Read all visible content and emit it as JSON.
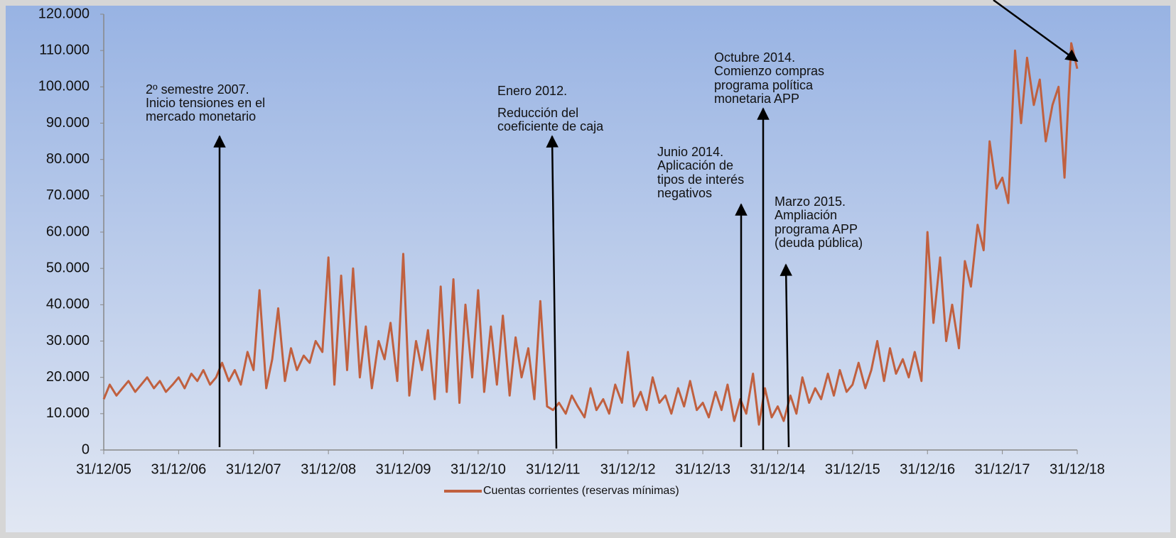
{
  "chart_data": {
    "type": "line",
    "x": [
      2006.0,
      2006.08,
      2006.17,
      2006.25,
      2006.33,
      2006.42,
      2006.5,
      2006.58,
      2006.67,
      2006.75,
      2006.83,
      2006.92,
      2007.0,
      2007.08,
      2007.17,
      2007.25,
      2007.33,
      2007.42,
      2007.5,
      2007.58,
      2007.67,
      2007.75,
      2007.83,
      2007.92,
      2008.0,
      2008.08,
      2008.17,
      2008.25,
      2008.33,
      2008.42,
      2008.5,
      2008.58,
      2008.67,
      2008.75,
      2008.83,
      2008.92,
      2009.0,
      2009.08,
      2009.17,
      2009.25,
      2009.33,
      2009.42,
      2009.5,
      2009.58,
      2009.67,
      2009.75,
      2009.83,
      2009.92,
      2010.0,
      2010.08,
      2010.17,
      2010.25,
      2010.33,
      2010.42,
      2010.5,
      2010.58,
      2010.67,
      2010.75,
      2010.83,
      2010.92,
      2011.0,
      2011.08,
      2011.17,
      2011.25,
      2011.33,
      2011.42,
      2011.5,
      2011.58,
      2011.67,
      2011.75,
      2011.83,
      2011.92,
      2012.0,
      2012.08,
      2012.17,
      2012.25,
      2012.33,
      2012.42,
      2012.5,
      2012.58,
      2012.67,
      2012.75,
      2012.83,
      2012.92,
      2013.0,
      2013.08,
      2013.17,
      2013.25,
      2013.33,
      2013.42,
      2013.5,
      2013.58,
      2013.67,
      2013.75,
      2013.83,
      2013.92,
      2014.0,
      2014.08,
      2014.17,
      2014.25,
      2014.33,
      2014.42,
      2014.5,
      2014.58,
      2014.67,
      2014.75,
      2014.83,
      2014.92,
      2015.0,
      2015.08,
      2015.17,
      2015.25,
      2015.33,
      2015.42,
      2015.5,
      2015.58,
      2015.67,
      2015.75,
      2015.83,
      2015.92,
      2016.0,
      2016.08,
      2016.17,
      2016.25,
      2016.33,
      2016.42,
      2016.5,
      2016.58,
      2016.67,
      2016.75,
      2016.83,
      2016.92,
      2017.0,
      2017.08,
      2017.17,
      2017.25,
      2017.33,
      2017.42,
      2017.5,
      2017.58,
      2017.67,
      2017.75,
      2017.83,
      2017.92,
      2018.0,
      2018.08,
      2018.17,
      2018.25,
      2018.33,
      2018.42,
      2018.5,
      2018.58,
      2018.67,
      2018.75,
      2018.83,
      2018.92,
      2019.0
    ],
    "series": [
      {
        "name": "Cuentas corrientes (reservas mínimas)",
        "color": "#c0603f",
        "values": [
          14000,
          18000,
          15000,
          17000,
          19000,
          16000,
          18000,
          20000,
          17000,
          19000,
          16000,
          18000,
          20000,
          17000,
          21000,
          19000,
          22000,
          18000,
          20000,
          24000,
          19000,
          22000,
          18000,
          27000,
          22000,
          44000,
          17000,
          25000,
          39000,
          19000,
          28000,
          22000,
          26000,
          24000,
          30000,
          27000,
          53000,
          18000,
          48000,
          22000,
          50000,
          20000,
          34000,
          17000,
          30000,
          25000,
          35000,
          19000,
          54000,
          15000,
          30000,
          22000,
          33000,
          14000,
          45000,
          16000,
          47000,
          13000,
          40000,
          20000,
          44000,
          16000,
          34000,
          18000,
          37000,
          15000,
          31000,
          20000,
          28000,
          14000,
          41000,
          12000,
          11000,
          13000,
          10000,
          15000,
          12000,
          9000,
          17000,
          11000,
          14000,
          10000,
          18000,
          13000,
          27000,
          12000,
          16000,
          11000,
          20000,
          13000,
          15000,
          10000,
          17000,
          12000,
          19000,
          11000,
          13000,
          9000,
          16000,
          11000,
          18000,
          8000,
          14000,
          10000,
          21000,
          7000,
          17000,
          9000,
          12000,
          8000,
          15000,
          10000,
          20000,
          13000,
          17000,
          14000,
          21000,
          15000,
          22000,
          16000,
          18000,
          24000,
          17000,
          22000,
          30000,
          19000,
          28000,
          21000,
          25000,
          20000,
          27000,
          19000,
          60000,
          35000,
          53000,
          30000,
          40000,
          28000,
          52000,
          45000,
          62000,
          55000,
          85000,
          72000,
          75000,
          68000,
          110000,
          90000,
          108000,
          95000,
          102000,
          85000,
          95000,
          100000,
          75000,
          112000,
          105000
        ]
      }
    ],
    "xlim": [
      2006,
      2019
    ],
    "xticks": [
      {
        "value": 2006,
        "label": "31/12/05"
      },
      {
        "value": 2007,
        "label": "31/12/06"
      },
      {
        "value": 2008,
        "label": "31/12/07"
      },
      {
        "value": 2009,
        "label": "31/12/08"
      },
      {
        "value": 2010,
        "label": "31/12/09"
      },
      {
        "value": 2011,
        "label": "31/12/10"
      },
      {
        "value": 2012,
        "label": "31/12/11"
      },
      {
        "value": 2013,
        "label": "31/12/12"
      },
      {
        "value": 2014,
        "label": "31/12/13"
      },
      {
        "value": 2015,
        "label": "31/12/14"
      },
      {
        "value": 2016,
        "label": "31/12/15"
      },
      {
        "value": 2017,
        "label": "31/12/16"
      },
      {
        "value": 2018,
        "label": "31/12/17"
      },
      {
        "value": 2019,
        "label": "31/12/18"
      }
    ],
    "ylim": [
      0,
      120000
    ],
    "yticks": [
      0,
      {
        "value": 10000,
        "label": "10.000"
      },
      {
        "value": 20000,
        "label": "20.000"
      },
      {
        "value": 30000,
        "label": "30.000"
      },
      {
        "value": 40000,
        "label": "40.000"
      },
      {
        "value": 50000,
        "label": "50.000"
      },
      {
        "value": 60000,
        "label": "60.000"
      },
      {
        "value": 70000,
        "label": "70.000"
      },
      {
        "value": 80000,
        "label": "80.000"
      },
      {
        "value": 90000,
        "label": "90.000"
      },
      {
        "value": 100000,
        "label": "100.000"
      },
      {
        "value": 110000,
        "label": "110.000"
      },
      {
        "value": 120000,
        "label": "120.000"
      }
    ],
    "legend": "bottom",
    "annotations": [
      {
        "text": [
          "2º semestre 2007.",
          "Inicio tensiones en el",
          "mercado monetario"
        ]
      },
      {
        "text": [
          "Enero 2012.",
          "Reducción del",
          "coeficiente de caja"
        ]
      },
      {
        "text": [
          "Octubre 2014.",
          "Comienzo compras",
          "programa política",
          "monetaria APP"
        ]
      },
      {
        "text": [
          "Junio 2014.",
          "Aplicación de",
          "tipos de interés",
          "negativos"
        ]
      },
      {
        "text": [
          "Marzo 2015.",
          "Ampliación",
          "programa APP",
          "(deuda pública)"
        ]
      }
    ]
  }
}
